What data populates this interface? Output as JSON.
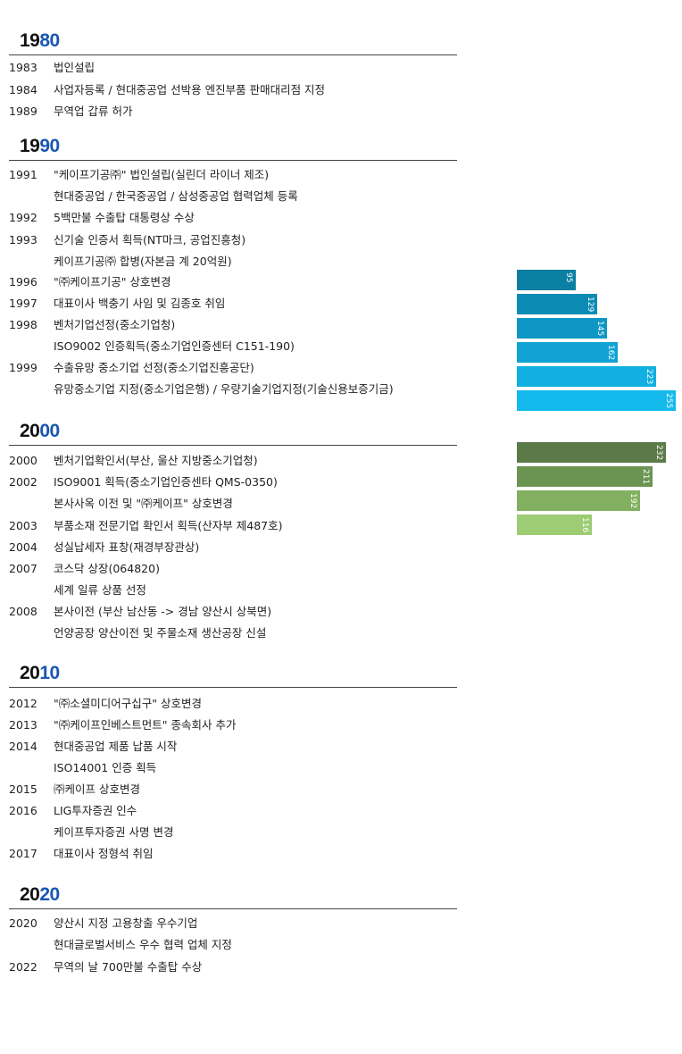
{
  "decades": [
    {
      "prefix": "19",
      "suffix": "80",
      "entries": [
        {
          "year": "1983",
          "text": "법인설립"
        },
        {
          "year": "1984",
          "text": "사업자등록 / 현대중공업 선박용 엔진부품 판매대리점 지정"
        },
        {
          "year": "1989",
          "text": "무역업 갑류 허가"
        }
      ]
    },
    {
      "prefix": "19",
      "suffix": "90",
      "entries": [
        {
          "year": "1991",
          "text": "\"케이프기공㈜\" 법인설립(실린더 라이너 제조)"
        },
        {
          "year": "",
          "text": "현대중공업 / 한국중공업 / 삼성중공업 협력업체 등록"
        },
        {
          "year": "1992",
          "text": "5백만불 수출탑 대통령상 수상"
        },
        {
          "year": "1993",
          "text": "신기술 인증서 획득(NT마크, 공업진흥청)"
        },
        {
          "year": "",
          "text": "케이프기공㈜ 합병(자본금 계 20억원)"
        },
        {
          "year": "1996",
          "text": "\"㈜케이프기공\" 상호변경"
        },
        {
          "year": "1997",
          "text": "대표이사 백충기 사임 및 김종호 취임"
        },
        {
          "year": "1998",
          "text": "벤처기업선정(중소기업청)"
        },
        {
          "year": "",
          "text": "ISO9002 인증획득(중소기업인증센터 C151-190)"
        },
        {
          "year": "1999",
          "text": "수출유망 중소기업 선정(중소기업진흥공단)"
        },
        {
          "year": "",
          "text": "유망중소기업 지정(중소기업은행) / 우량기술기업지정(기술신용보증기금)"
        }
      ]
    },
    {
      "prefix": "20",
      "suffix": "00",
      "entries": [
        {
          "year": "2000",
          "text": "벤처기업확인서(부산, 울산 지방중소기업청)"
        },
        {
          "year": "2002",
          "text": "ISO9001 획득(중소기업인증센타 QMS-0350)"
        },
        {
          "year": "",
          "text": "본사사옥 이전 및 \"㈜케이프\" 상호변경"
        },
        {
          "year": "2003",
          "text": "부품소재 전문기업 확인서 획득(산자부 제487호)"
        },
        {
          "year": "2004",
          "text": "성실납세자 표창(재경부장관상)"
        },
        {
          "year": "2007",
          "text": "코스닥 상장(064820)"
        },
        {
          "year": "",
          "text": "세계 일류 상품 선정"
        },
        {
          "year": "2008",
          "text": "본사이전 (부산 남산동 -> 경남 양산시 상북면)"
        },
        {
          "year": "",
          "text": "언양공장 양산이전 및 주물소재 생산공장 신설"
        }
      ]
    },
    {
      "prefix": "20",
      "suffix": "10",
      "entries": [
        {
          "year": "2012",
          "text": "\"㈜소셜미디어구십구\" 상호변경"
        },
        {
          "year": "2013",
          "text": "\"㈜케이프인베스트먼트\" 종속회사 추가"
        },
        {
          "year": "2014",
          "text": "현대중공업 제품 납품 시작"
        },
        {
          "year": "",
          "text": "ISO14001 인증 획득"
        },
        {
          "year": "2015",
          "text": "㈜케이프 상호변경"
        },
        {
          "year": "2016",
          "text": "LIG투자증권 인수"
        },
        {
          "year": "",
          "text": "케이프투자증권 사명 변경"
        },
        {
          "year": "2017",
          "text": "대표이사 정형석 취임"
        }
      ]
    },
    {
      "prefix": "20",
      "suffix": "20",
      "entries": [
        {
          "year": "2020",
          "text": "양산시 지정 고용창출 우수기업"
        },
        {
          "year": "",
          "text": "현대글로벌서비스 우수 협력 업체 지정"
        },
        {
          "year": "2022",
          "text": "무역의 날 700만불 수출탑 수상"
        }
      ]
    }
  ],
  "chart_data": [
    {
      "type": "bar",
      "orientation": "horizontal",
      "values": [
        95,
        129,
        145,
        162,
        223,
        255
      ],
      "colors": [
        "#0b7ea3",
        "#0c8bb5",
        "#0e97c4",
        "#10a3d4",
        "#11afe2",
        "#14baec"
      ]
    },
    {
      "type": "bar",
      "orientation": "horizontal",
      "values": [
        232,
        211,
        192,
        116
      ],
      "colors": [
        "#5a7a48",
        "#6b9453",
        "#82b061",
        "#9ccc73"
      ]
    }
  ]
}
